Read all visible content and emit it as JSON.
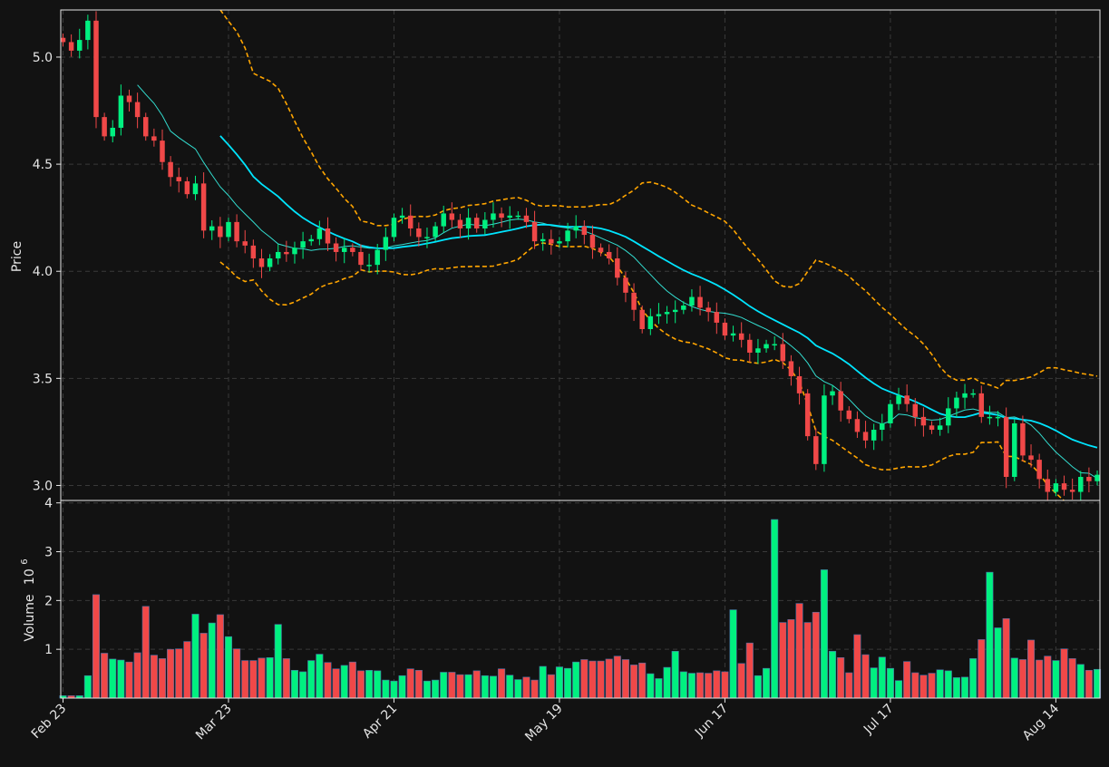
{
  "chart_data": {
    "type": "candlestick",
    "title": "",
    "price_panel": {
      "ylabel": "Price",
      "ylim": [
        2.93,
        5.22
      ],
      "yticks": [
        "3.0",
        "3.5",
        "4.0",
        "4.5",
        "5.0"
      ],
      "grid": true
    },
    "volume_panel": {
      "ylabel": "Volume",
      "ylabel_exponent": "10",
      "ylabel_power": "6",
      "ylim": [
        0,
        4.05
      ],
      "yticks": [
        "1",
        "2",
        "3",
        "4"
      ],
      "unit_scale": 1000000
    },
    "x_tick_labels": [
      {
        "index": 0,
        "label": "Feb 23"
      },
      {
        "index": 20,
        "label": "Mar 23"
      },
      {
        "index": 40,
        "label": "Apr 21"
      },
      {
        "index": 60,
        "label": "May 19"
      },
      {
        "index": 80,
        "label": "Jun 17"
      },
      {
        "index": 100,
        "label": "Jul 17"
      },
      {
        "index": 120,
        "label": "Aug 14"
      }
    ],
    "num_bars": 126,
    "colors": {
      "up": "#00f080",
      "down": "#f04848",
      "ma_short": "#33ddd0",
      "ma_long": "#00e5ff",
      "bands": "#ffa500",
      "background": "#121212",
      "grid": "#3a3a3a",
      "axis": "#e6e6e6"
    },
    "overlays": [
      {
        "kind": "moving-average",
        "window": 10,
        "style": "thin cyan"
      },
      {
        "kind": "moving-average",
        "window": 20,
        "style": "thick cyan"
      },
      {
        "kind": "bollinger-bands",
        "window": 20,
        "k": 2,
        "style": "orange dashed"
      }
    ],
    "series": [
      {
        "name": "close",
        "values": [
          5.07,
          5.03,
          5.08,
          5.17,
          4.72,
          4.63,
          4.67,
          4.82,
          4.79,
          4.72,
          4.63,
          4.61,
          4.51,
          4.44,
          4.42,
          4.36,
          4.41,
          4.19,
          4.21,
          4.16,
          4.23,
          4.14,
          4.12,
          4.06,
          4.02,
          4.06,
          4.09,
          4.08,
          4.11,
          4.14,
          4.15,
          4.2,
          4.13,
          4.09,
          4.11,
          4.09,
          4.03,
          4.03,
          4.1,
          4.16,
          4.25,
          4.26,
          4.2,
          4.16,
          4.16,
          4.21,
          4.27,
          4.24,
          4.2,
          4.25,
          4.2,
          4.24,
          4.27,
          4.25,
          4.26,
          4.26,
          4.23,
          4.14,
          4.15,
          4.13,
          4.14,
          4.19,
          4.21,
          4.17,
          4.11,
          4.09,
          4.06,
          3.97,
          3.9,
          3.82,
          3.73,
          3.79,
          3.8,
          3.81,
          3.82,
          3.84,
          3.88,
          3.83,
          3.81,
          3.76,
          3.7,
          3.71,
          3.68,
          3.62,
          3.64,
          3.66,
          3.66,
          3.58,
          3.51,
          3.43,
          3.23,
          3.1,
          3.42,
          3.44,
          3.35,
          3.31,
          3.25,
          3.21,
          3.26,
          3.29,
          3.38,
          3.42,
          3.38,
          3.32,
          3.28,
          3.26,
          3.28,
          3.36,
          3.41,
          3.43,
          3.43,
          3.32,
          3.32,
          3.32,
          3.04,
          3.29,
          3.14,
          3.12,
          3.03,
          2.97,
          3.01,
          2.98,
          2.97,
          3.04,
          3.02,
          3.05
        ]
      },
      {
        "name": "volume",
        "values": [
          0.05,
          0.05,
          0.05,
          0.46,
          2.12,
          0.92,
          0.8,
          0.78,
          0.74,
          0.93,
          1.88,
          0.88,
          0.81,
          1.0,
          1.01,
          1.16,
          1.72,
          1.33,
          1.54,
          1.71,
          1.26,
          1.01,
          0.77,
          0.77,
          0.82,
          0.83,
          1.51,
          0.81,
          0.57,
          0.54,
          0.77,
          0.9,
          0.73,
          0.6,
          0.67,
          0.74,
          0.56,
          0.57,
          0.56,
          0.37,
          0.35,
          0.46,
          0.6,
          0.57,
          0.35,
          0.37,
          0.53,
          0.53,
          0.48,
          0.48,
          0.56,
          0.46,
          0.45,
          0.6,
          0.47,
          0.38,
          0.43,
          0.37,
          0.65,
          0.48,
          0.64,
          0.61,
          0.74,
          0.79,
          0.76,
          0.76,
          0.8,
          0.86,
          0.79,
          0.68,
          0.72,
          0.5,
          0.4,
          0.63,
          0.96,
          0.54,
          0.51,
          0.52,
          0.51,
          0.56,
          0.54,
          1.81,
          0.71,
          1.13,
          0.46,
          0.61,
          3.66,
          1.55,
          1.61,
          1.94,
          1.55,
          1.76,
          2.63,
          0.96,
          0.83,
          0.52,
          1.3,
          0.89,
          0.62,
          0.84,
          0.61,
          0.36,
          0.75,
          0.52,
          0.47,
          0.51,
          0.58,
          0.56,
          0.42,
          0.43,
          0.81,
          1.2,
          2.58,
          1.44,
          1.63,
          0.82,
          0.79,
          1.19,
          0.78,
          0.86,
          0.77,
          1.01,
          0.81,
          0.69,
          0.57,
          0.59
        ]
      }
    ]
  }
}
